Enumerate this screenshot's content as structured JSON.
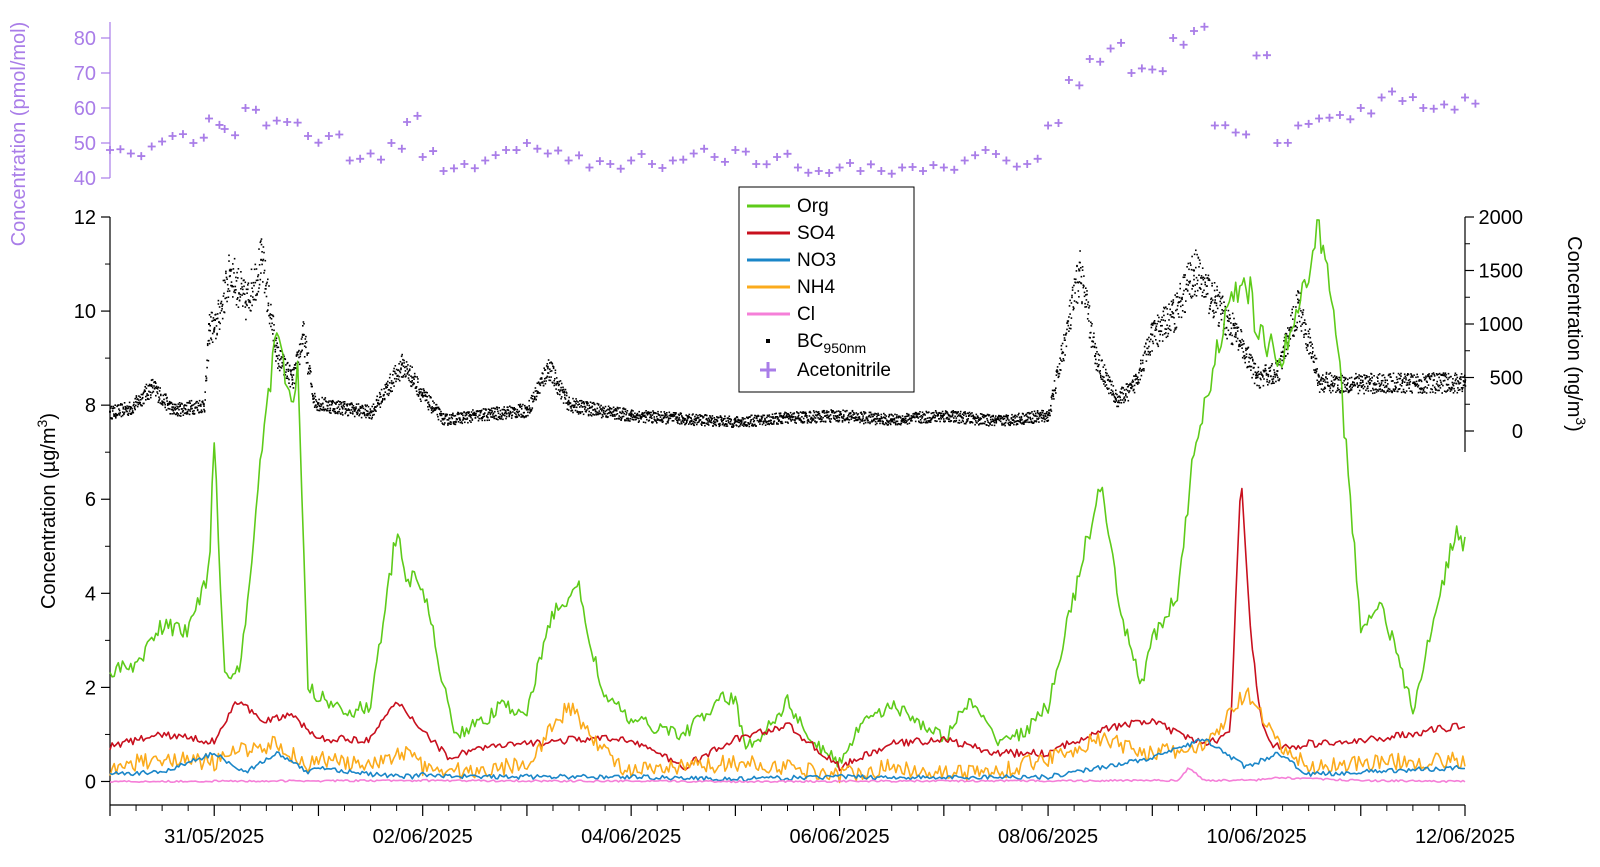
{
  "chart_data": [
    {
      "type": "line",
      "xaxis": {
        "ticks": [
          "31/05/2025",
          "02/06/2025",
          "04/06/2025",
          "06/06/2025",
          "08/06/2025",
          "10/06/2025",
          "12/06/2025"
        ],
        "range": [
          "30/05/2025 00:00",
          "12/06/2025 00:00"
        ]
      },
      "yaxis": {
        "label": "Concentration (µg/m",
        "label_sup": "3",
        "label_close": ")",
        "range": [
          -0.5,
          12
        ],
        "ticks": [
          "0",
          "2",
          "4",
          "6",
          "8",
          "10",
          "12"
        ]
      },
      "series": [
        {
          "name": "Org",
          "color": "#5ecb1a",
          "x": [
            0,
            0.25,
            0.5,
            0.75,
            0.95,
            1.0,
            1.1,
            1.25,
            1.5,
            1.6,
            1.75,
            1.8,
            1.9,
            2.0,
            2.3,
            2.5,
            2.75,
            2.85,
            3.0,
            3.3,
            3.6,
            3.75,
            4.0,
            4.25,
            4.5,
            4.6,
            4.75,
            5.0,
            5.5,
            5.9,
            6.0,
            6.1,
            6.25,
            6.5,
            6.75,
            7.0,
            7.25,
            7.5,
            7.75,
            8.0,
            8.25,
            8.5,
            8.75,
            9.0,
            9.5,
            9.7,
            9.9,
            10.0,
            10.25,
            10.4,
            10.6,
            10.8,
            10.95,
            11.0,
            11.25,
            11.5,
            11.6,
            11.75,
            12.0,
            12.2,
            12.5,
            12.9,
            13.0
          ],
          "y": [
            2.3,
            2.5,
            3.3,
            3.2,
            4.5,
            7.4,
            2.2,
            2.4,
            8.0,
            9.4,
            8.0,
            8.8,
            2.0,
            1.8,
            1.5,
            1.6,
            5.3,
            4.3,
            4.2,
            1.0,
            1.3,
            1.6,
            1.5,
            3.6,
            4.1,
            3.0,
            1.8,
            1.3,
            1.0,
            1.8,
            1.7,
            0.7,
            1.0,
            1.7,
            0.8,
            0.4,
            1.4,
            1.6,
            1.3,
            0.9,
            1.7,
            0.9,
            1.0,
            1.6,
            6.3,
            3.5,
            2.1,
            3.0,
            4.0,
            7.0,
            9.0,
            10.5,
            10.4,
            9.5,
            9.0,
            10.8,
            11.8,
            10.0,
            3.3,
            3.8,
            1.5,
            5.3,
            5.0
          ]
        },
        {
          "name": "SO4",
          "color": "#c8101e",
          "x": [
            0,
            0.5,
            1.0,
            1.2,
            1.5,
            1.75,
            2.0,
            2.5,
            2.75,
            3.0,
            3.25,
            3.5,
            4.5,
            5.0,
            5.5,
            6.0,
            6.5,
            7.0,
            7.5,
            8.0,
            8.5,
            9.0,
            9.5,
            10.0,
            10.25,
            10.5,
            10.75,
            10.85,
            10.95,
            11.05,
            11.15,
            11.3,
            11.5,
            12.0,
            13.0
          ],
          "y": [
            0.75,
            1.0,
            0.85,
            1.7,
            1.3,
            1.4,
            0.9,
            0.9,
            1.7,
            1.1,
            0.5,
            0.7,
            0.9,
            0.9,
            0.3,
            0.9,
            1.2,
            0.3,
            0.8,
            0.9,
            0.6,
            0.6,
            1.1,
            1.3,
            1.0,
            0.8,
            1.0,
            6.6,
            3.0,
            1.2,
            0.8,
            0.7,
            0.8,
            0.85,
            1.2
          ]
        },
        {
          "name": "NO3",
          "color": "#1a86c8",
          "x": [
            0,
            0.5,
            1.0,
            1.3,
            1.6,
            1.9,
            2.0,
            2.5,
            2.9,
            3.0,
            3.5,
            4.0,
            4.5,
            5.0,
            6.0,
            7.0,
            8.0,
            8.5,
            9.0,
            9.5,
            10.0,
            10.5,
            10.9,
            11.2,
            11.5,
            12.0,
            13.0
          ],
          "y": [
            0.15,
            0.2,
            0.6,
            0.2,
            0.6,
            0.2,
            0.3,
            0.15,
            0.1,
            0.15,
            0.1,
            0.1,
            0.1,
            0.1,
            0.05,
            0.1,
            0.08,
            0.1,
            0.1,
            0.3,
            0.5,
            0.9,
            0.3,
            0.6,
            0.15,
            0.2,
            0.3
          ]
        },
        {
          "name": "NH4",
          "color": "#fbab1c",
          "x": [
            0,
            0.5,
            1.0,
            1.3,
            1.6,
            1.9,
            2.0,
            2.5,
            2.9,
            3.0,
            3.5,
            4.0,
            4.4,
            4.8,
            5.0,
            5.5,
            6.0,
            6.5,
            7.0,
            7.5,
            8.0,
            8.5,
            9.0,
            9.5,
            10.0,
            10.5,
            10.9,
            11.2,
            11.5,
            12.0,
            13.0
          ],
          "y": [
            0.3,
            0.5,
            0.4,
            0.7,
            0.8,
            0.35,
            0.5,
            0.3,
            0.7,
            0.3,
            0.2,
            0.4,
            1.6,
            0.5,
            0.2,
            0.3,
            0.4,
            0.3,
            0.15,
            0.3,
            0.2,
            0.2,
            0.5,
            0.9,
            0.6,
            0.7,
            1.9,
            0.8,
            0.3,
            0.4,
            0.45
          ]
        },
        {
          "name": "Cl",
          "color": "#f57fd8",
          "x": [
            0,
            3.0,
            6.0,
            8.0,
            10.0,
            10.25,
            10.35,
            10.5,
            11.0,
            11.2,
            12.0,
            13.0
          ],
          "y": [
            0.0,
            0.02,
            0.0,
            0.01,
            0.02,
            0.02,
            0.3,
            0.02,
            0.03,
            0.08,
            0.02,
            0.0
          ]
        }
      ]
    },
    {
      "type": "scatter",
      "series_name": "BC",
      "series_name_sub": "950nm",
      "color": "#000000",
      "yaxis": {
        "label": "Concentration (ng/m",
        "label_sup": "3",
        "label_close": ")",
        "ticks": [
          "0",
          "500",
          "1000",
          "1500",
          "2000"
        ],
        "range": [
          -200,
          2000
        ]
      },
      "x": [
        0,
        0.2,
        0.4,
        0.6,
        0.9,
        0.95,
        1.0,
        1.15,
        1.3,
        1.45,
        1.6,
        1.75,
        1.85,
        1.95,
        2.0,
        2.5,
        2.8,
        2.9,
        3.0,
        3.2,
        3.5,
        4.0,
        4.2,
        4.4,
        4.8,
        5.0,
        5.5,
        6.0,
        6.5,
        7.0,
        7.5,
        8.0,
        8.5,
        9.0,
        9.3,
        9.45,
        9.65,
        9.8,
        10.0,
        10.2,
        10.4,
        10.6,
        10.8,
        11.0,
        11.2,
        11.4,
        11.6,
        12.0,
        13.0
      ],
      "y": [
        180,
        220,
        420,
        200,
        250,
        1000,
        950,
        1500,
        1200,
        1600,
        700,
        480,
        900,
        300,
        260,
        180,
        620,
        500,
        330,
        110,
        150,
        200,
        600,
        250,
        180,
        150,
        120,
        90,
        130,
        150,
        110,
        150,
        100,
        150,
        1500,
        700,
        300,
        400,
        900,
        1100,
        1500,
        1200,
        900,
        500,
        560,
        1200,
        460,
        450,
        460
      ]
    },
    {
      "type": "scatter",
      "series_name": "Acetonitrile",
      "color": "#a97de8",
      "marker": "+",
      "yaxis": {
        "label": "Concentration (pmol/mol)",
        "ticks": [
          "40",
          "50",
          "60",
          "70",
          "80"
        ],
        "range": [
          40,
          85
        ]
      },
      "x": [
        0,
        0.2,
        0.4,
        0.6,
        0.8,
        0.95,
        1.1,
        1.3,
        1.5,
        1.7,
        1.9,
        2.1,
        2.3,
        2.5,
        2.7,
        2.85,
        3.0,
        3.2,
        3.4,
        3.6,
        3.8,
        4.0,
        4.2,
        4.4,
        4.6,
        4.8,
        5.0,
        5.2,
        5.4,
        5.6,
        5.8,
        6.0,
        6.2,
        6.4,
        6.6,
        6.8,
        7.0,
        7.2,
        7.4,
        7.6,
        7.8,
        8.0,
        8.2,
        8.4,
        8.6,
        8.8,
        9.0,
        9.2,
        9.4,
        9.6,
        9.8,
        10.0,
        10.2,
        10.4,
        10.6,
        10.8,
        11.0,
        11.2,
        11.4,
        11.6,
        11.8,
        12.0,
        12.2,
        12.4,
        12.6,
        12.8,
        13.0
      ],
      "y": [
        48,
        47,
        49,
        52,
        50,
        57,
        54,
        60,
        55,
        56,
        52,
        52,
        45,
        47,
        50,
        56,
        46,
        42,
        44,
        45,
        48,
        50,
        47,
        45,
        43,
        44,
        45,
        44,
        45,
        47,
        46,
        48,
        44,
        46,
        43,
        42,
        43,
        42,
        42,
        43,
        42,
        43,
        45,
        48,
        45,
        44,
        55,
        68,
        74,
        77,
        70,
        71,
        80,
        82,
        55,
        53,
        75,
        50,
        55,
        57,
        58,
        60,
        63,
        62,
        60,
        61,
        63
      ]
    }
  ]
}
